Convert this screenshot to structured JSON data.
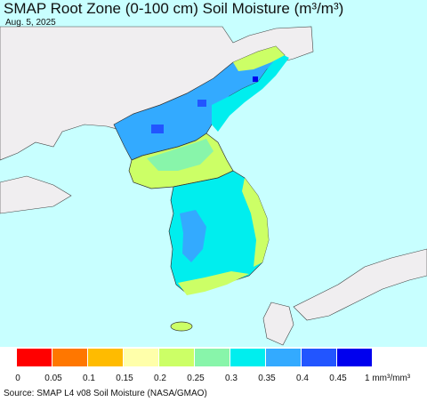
{
  "title": "SMAP Root Zone (0-100 cm) Soil Moisture (m³/m³)",
  "date": "Aug. 5, 2025",
  "source": "Source: SMAP L4 v08 Soil Moisture (NASA/GMAO)",
  "legend": {
    "ticks": [
      "0",
      "0.05",
      "0.1",
      "0.15",
      "0.2",
      "0.25",
      "0.3",
      "0.35",
      "0.4",
      "0.45"
    ],
    "unit": "1 mm³/mm³",
    "colors": [
      "#ff0000",
      "#ff7700",
      "#ffbb00",
      "#ffffaa",
      "#ccff66",
      "#88f5aa",
      "#00eeee",
      "#33aaff",
      "#2255ff",
      "#0000ee"
    ]
  },
  "colors": {
    "sea": "#c8ffff",
    "land": "#f0eef0",
    "coast": "#111111"
  }
}
